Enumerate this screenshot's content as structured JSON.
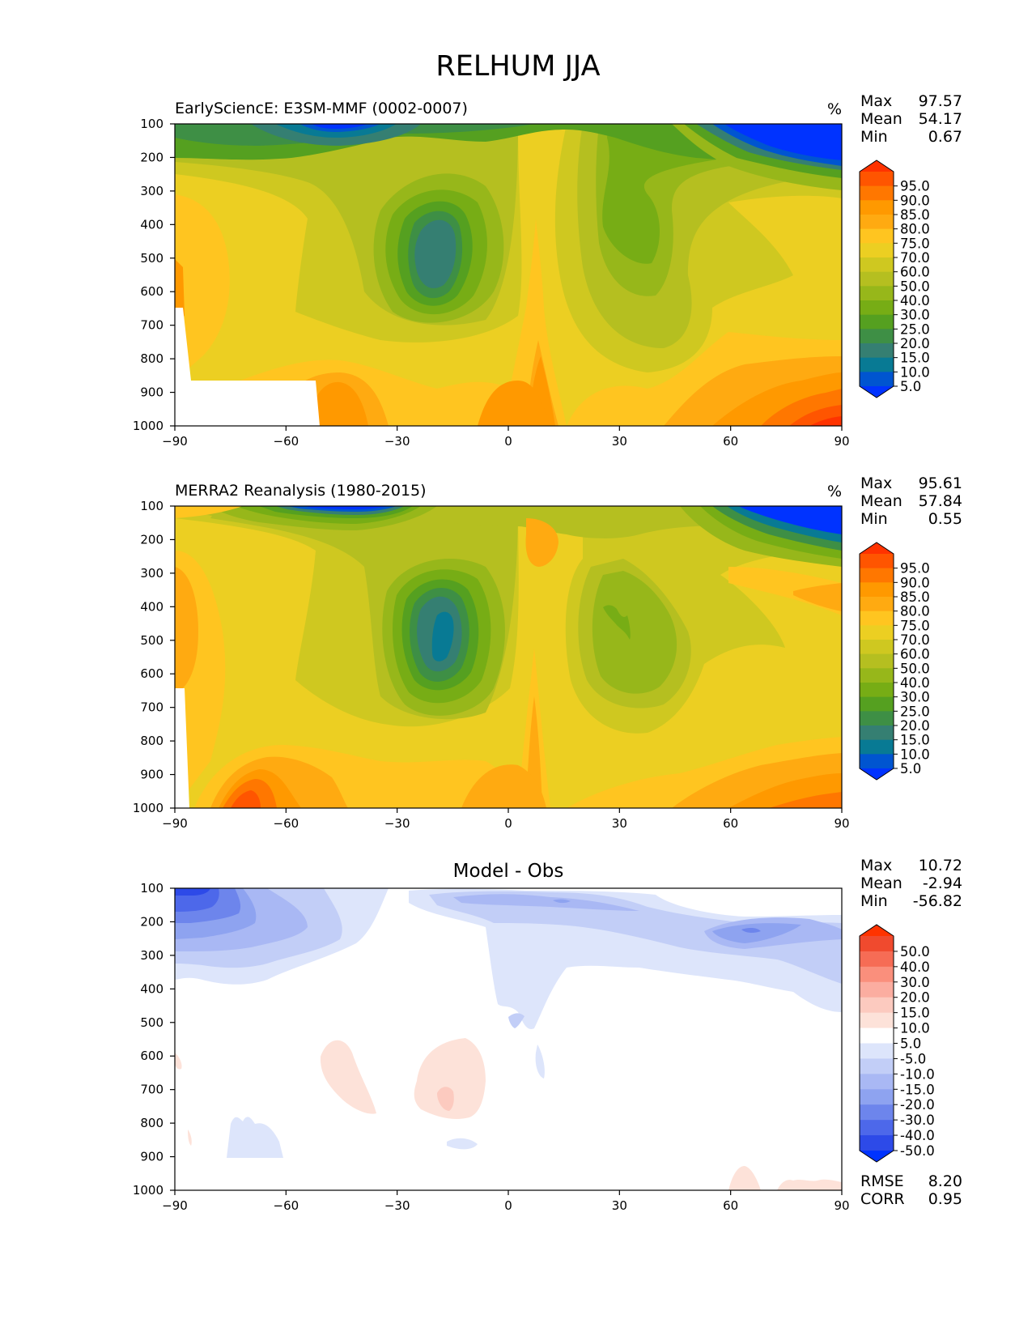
{
  "suptitle": "RELHUM JJA",
  "chart_data": [
    {
      "type": "contour",
      "title": "EarlySciencE: E3SM-MMF (0002-0007)",
      "units": "%",
      "x_ticks": [
        "−90",
        "−60",
        "−30",
        "0",
        "30",
        "60",
        "90"
      ],
      "y_ticks": [
        "100",
        "200",
        "300",
        "400",
        "500",
        "600",
        "700",
        "800",
        "900",
        "1000"
      ],
      "xlim": [
        -90,
        90
      ],
      "ylim": [
        1000,
        100
      ],
      "stats": [
        {
          "label": "Max",
          "value": "97.57"
        },
        {
          "label": "Mean",
          "value": "54.17"
        },
        {
          "label": "Min",
          "value": "0.67"
        }
      ],
      "levels": [
        "95.0",
        "90.0",
        "85.0",
        "80.0",
        "75.0",
        "70.0",
        "60.0",
        "50.0",
        "40.0",
        "30.0",
        "25.0",
        "20.0",
        "15.0",
        "10.0",
        "5.0"
      ]
    },
    {
      "type": "contour",
      "title": "MERRA2 Reanalysis (1980-2015)",
      "units": "%",
      "x_ticks": [
        "−90",
        "−60",
        "−30",
        "0",
        "30",
        "60",
        "90"
      ],
      "y_ticks": [
        "100",
        "200",
        "300",
        "400",
        "500",
        "600",
        "700",
        "800",
        "900",
        "1000"
      ],
      "xlim": [
        -90,
        90
      ],
      "ylim": [
        1000,
        100
      ],
      "stats": [
        {
          "label": "Max",
          "value": "95.61"
        },
        {
          "label": "Mean",
          "value": "57.84"
        },
        {
          "label": "Min",
          "value": "0.55"
        }
      ],
      "levels": [
        "95.0",
        "90.0",
        "85.0",
        "80.0",
        "75.0",
        "70.0",
        "60.0",
        "50.0",
        "40.0",
        "30.0",
        "25.0",
        "20.0",
        "15.0",
        "10.0",
        "5.0"
      ]
    },
    {
      "type": "contour",
      "title": "Model - Obs",
      "x_ticks": [
        "−90",
        "−60",
        "−30",
        "0",
        "30",
        "60",
        "90"
      ],
      "y_ticks": [
        "100",
        "200",
        "300",
        "400",
        "500",
        "600",
        "700",
        "800",
        "900",
        "1000"
      ],
      "xlim": [
        -90,
        90
      ],
      "ylim": [
        1000,
        100
      ],
      "stats": [
        {
          "label": "Max",
          "value": "10.72"
        },
        {
          "label": "Mean",
          "value": "-2.94"
        },
        {
          "label": "Min",
          "value": "-56.82"
        }
      ],
      "levels": [
        "50.0",
        "40.0",
        "30.0",
        "20.0",
        "15.0",
        "10.0",
        "5.0",
        "-5.0",
        "-10.0",
        "-15.0",
        "-20.0",
        "-30.0",
        "-40.0",
        "-50.0"
      ],
      "metrics": [
        {
          "label": "RMSE",
          "value": "8.20"
        },
        {
          "label": "CORR",
          "value": "0.95"
        }
      ]
    }
  ],
  "colors": {
    "rh": [
      "#ff3300",
      "#ff5500",
      "#ff7700",
      "#ff9900",
      "#ffaa11",
      "#ffc520",
      "#eccf22",
      "#cfc820",
      "#b5bf20",
      "#97b71a",
      "#77ad15",
      "#55a020",
      "#3e8f45",
      "#357f72",
      "#087a94",
      "#0055d0",
      "#0033ff"
    ],
    "diff": [
      "#ff3300",
      "#f04a2e",
      "#f66c55",
      "#fa8f7c",
      "#fbada0",
      "#fccabf",
      "#fde2d9",
      "#ffffff",
      "#dde5fb",
      "#c2cef7",
      "#a9b8f4",
      "#8ea3f0",
      "#6d85ec",
      "#4d68ea",
      "#2d4ae8",
      "#0033ff"
    ]
  }
}
